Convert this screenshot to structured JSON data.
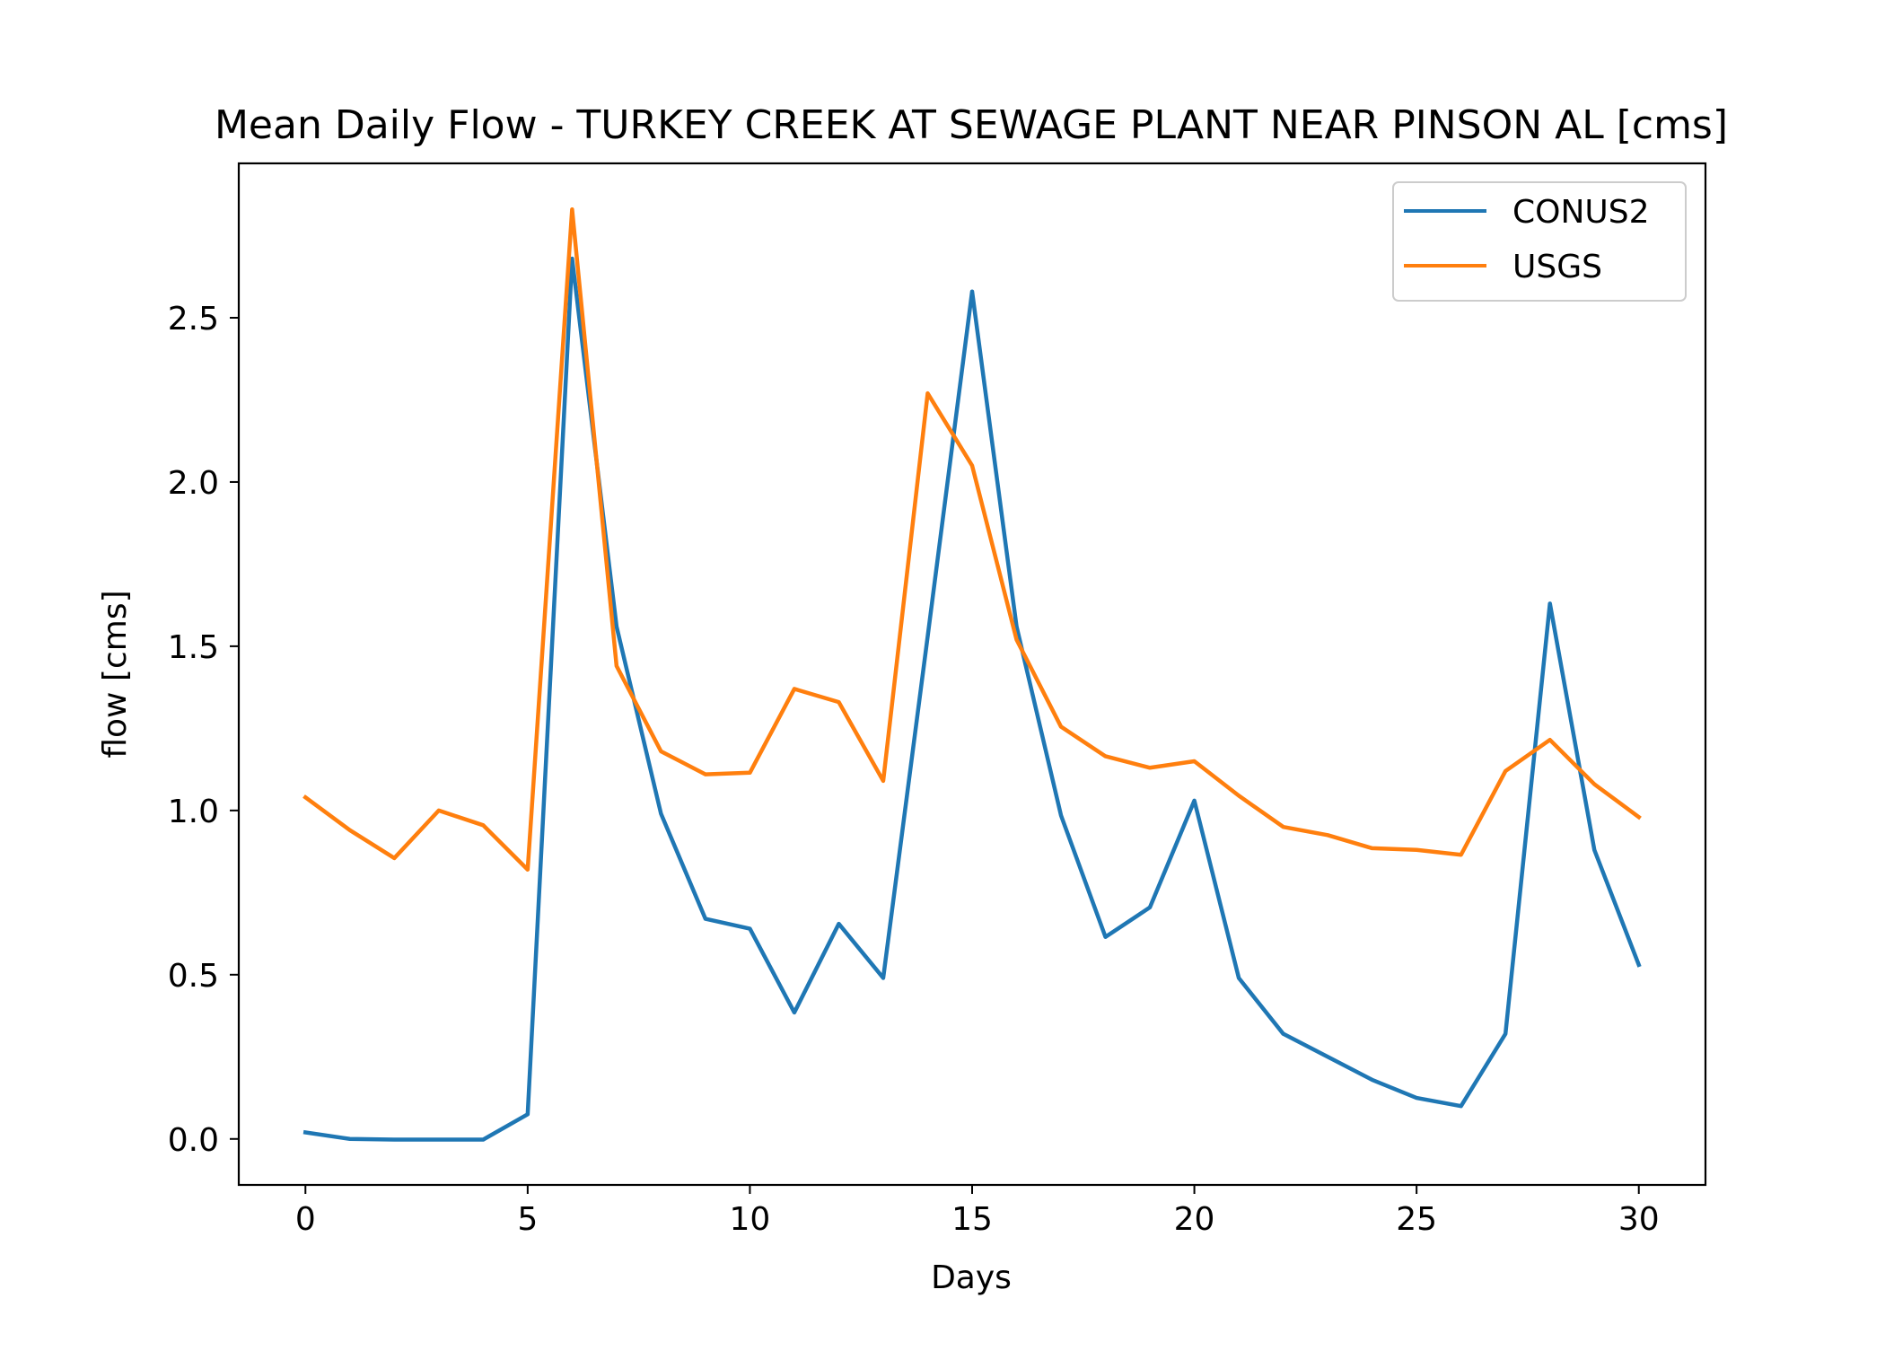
{
  "chart_data": {
    "type": "line",
    "title": "Mean Daily Flow - TURKEY CREEK AT SEWAGE PLANT NEAR PINSON AL [cms]",
    "xlabel": "Days",
    "ylabel": "flow [cms]",
    "xlim": [
      -1.5,
      31.5
    ],
    "ylim": [
      -0.14,
      2.97
    ],
    "xticks": [
      0,
      5,
      10,
      15,
      20,
      25,
      30
    ],
    "xtick_labels": [
      "0",
      "5",
      "10",
      "15",
      "20",
      "25",
      "30"
    ],
    "yticks": [
      0.0,
      0.5,
      1.0,
      1.5,
      2.0,
      2.5
    ],
    "ytick_labels": [
      "0.0",
      "0.5",
      "1.0",
      "1.5",
      "2.0",
      "2.5"
    ],
    "grid": false,
    "legend_position": "upper right",
    "x": [
      0,
      1,
      2,
      3,
      4,
      5,
      6,
      7,
      8,
      9,
      10,
      11,
      12,
      13,
      14,
      15,
      16,
      17,
      18,
      19,
      20,
      21,
      22,
      23,
      24,
      25,
      26,
      27,
      28,
      29,
      30
    ],
    "series": [
      {
        "name": "CONUS2",
        "color": "#1f77b4",
        "values": [
          0.02,
          0.0,
          -0.002,
          -0.002,
          -0.002,
          0.075,
          2.68,
          1.56,
          0.99,
          0.67,
          0.64,
          0.385,
          0.655,
          0.49,
          1.53,
          2.58,
          1.56,
          0.985,
          0.615,
          0.705,
          1.03,
          0.49,
          0.32,
          0.25,
          0.18,
          0.125,
          0.1,
          0.32,
          1.63,
          0.88,
          0.53
        ]
      },
      {
        "name": "USGS",
        "color": "#ff7f0e",
        "values": [
          1.04,
          0.94,
          0.855,
          1.0,
          0.955,
          0.82,
          2.83,
          1.44,
          1.18,
          1.11,
          1.115,
          1.37,
          1.33,
          1.09,
          2.27,
          2.05,
          1.52,
          1.255,
          1.165,
          1.13,
          1.15,
          1.045,
          0.95,
          0.925,
          0.885,
          0.88,
          0.865,
          1.12,
          1.215,
          1.08,
          0.98
        ]
      }
    ]
  }
}
